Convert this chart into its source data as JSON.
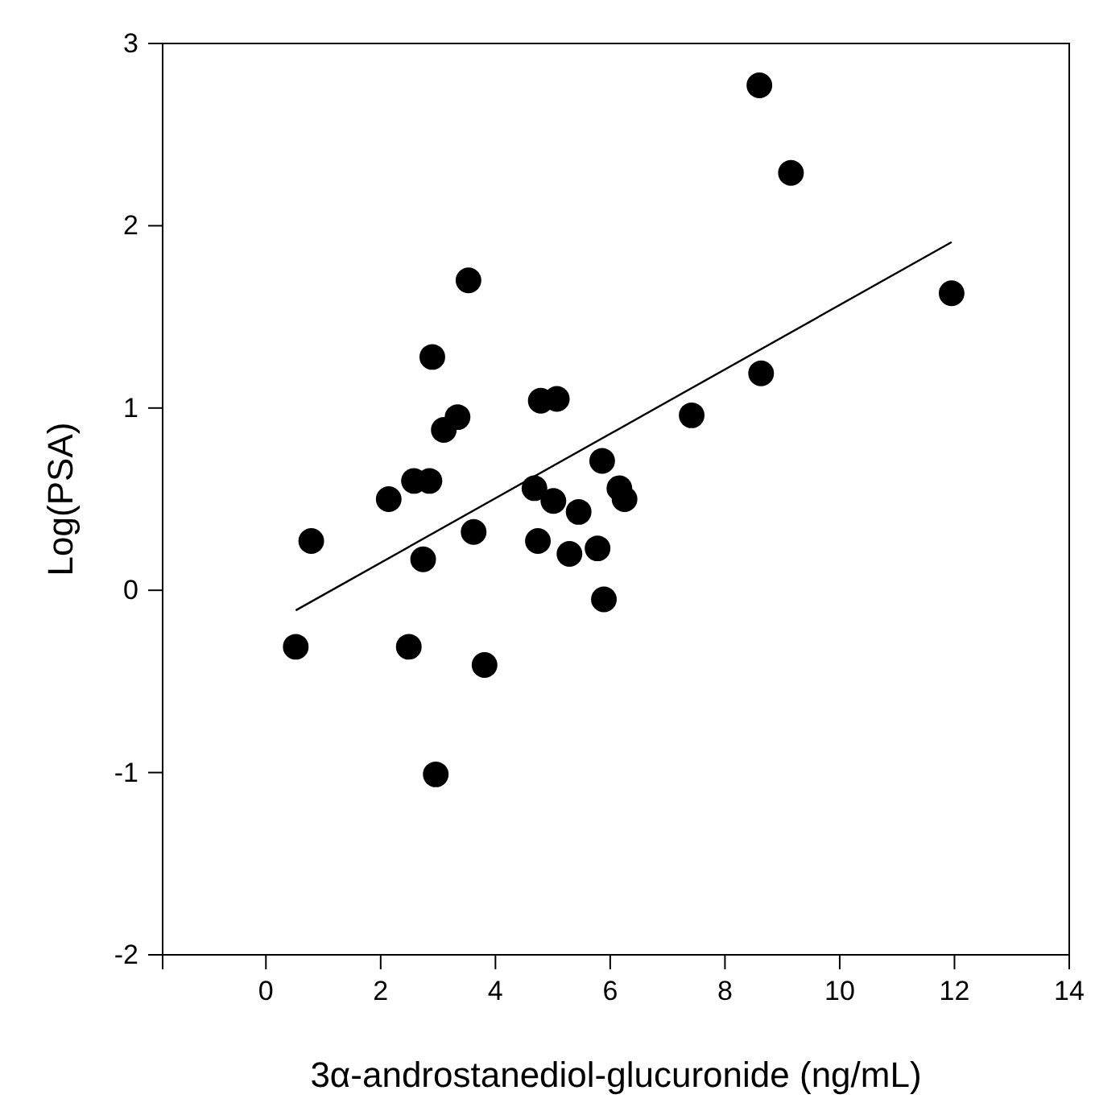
{
  "chart_data": {
    "type": "scatter",
    "xlabel": "3α-androstanediol-glucuronide (ng/mL)",
    "ylabel": "Log(PSA)",
    "xlim": [
      -1.8,
      14
    ],
    "xticks": [
      0,
      2,
      4,
      6,
      8,
      10,
      12,
      14
    ],
    "ylim": [
      -2,
      3
    ],
    "yticks": [
      -2,
      -1,
      0,
      1,
      2,
      3
    ],
    "grid": false,
    "marker": "circle",
    "series": [
      {
        "color": "#000000",
        "x": [
          0.52,
          0.79,
          2.14,
          2.49,
          2.58,
          2.74,
          2.85,
          2.9,
          2.96,
          3.1,
          3.34,
          3.53,
          3.62,
          3.81,
          4.68,
          4.74,
          4.79,
          5.01,
          5.07,
          5.29,
          5.45,
          5.78,
          5.86,
          5.89,
          6.16,
          6.25,
          7.42,
          8.63,
          8.6,
          9.15,
          11.95
        ],
        "values": [
          -0.31,
          0.27,
          0.5,
          -0.31,
          0.6,
          0.17,
          0.6,
          1.28,
          -1.01,
          0.88,
          0.95,
          1.7,
          0.32,
          -0.41,
          0.56,
          0.27,
          1.04,
          0.49,
          1.05,
          0.2,
          0.43,
          0.23,
          0.71,
          -0.05,
          0.56,
          0.5,
          0.96,
          1.19,
          2.77,
          2.29,
          1.63
        ]
      },
      {
        "type": "line",
        "color": "#000000",
        "marker": "none",
        "line_style": "solid",
        "x": [
          0.52,
          11.95
        ],
        "values": [
          -0.11,
          1.91
        ]
      }
    ]
  }
}
